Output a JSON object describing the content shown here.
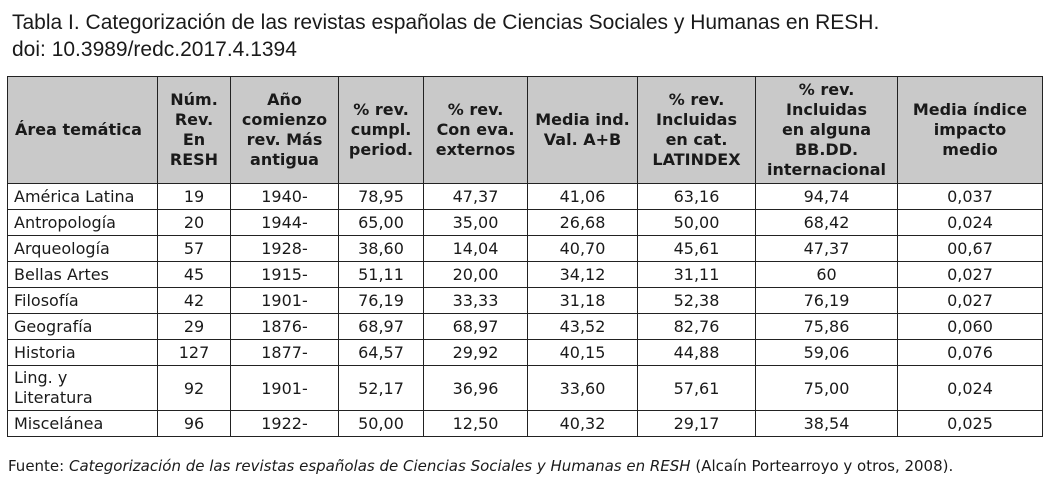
{
  "title": {
    "line1": "Tabla I. Categorización de las revistas españolas de Ciencias Sociales y Humanas en RESH.",
    "line2": "doi: 10.3989/redc.2017.4.1394"
  },
  "table": {
    "headers": [
      [
        "Área temática"
      ],
      [
        "Núm.",
        "Rev.",
        "En",
        "RESH"
      ],
      [
        "Año",
        "comienzo",
        "rev. Más",
        "antigua"
      ],
      [
        "% rev.",
        "cumpl.",
        "period."
      ],
      [
        "% rev.",
        "Con eva.",
        "externos"
      ],
      [
        "Media ind.",
        "Val. A+B"
      ],
      [
        "% rev.",
        "Incluidas",
        "en cat.",
        "LATINDEX"
      ],
      [
        "% rev.",
        "Incluidas",
        "en alguna",
        "BB.DD.",
        "internacional"
      ],
      [
        "Media índice",
        "impacto",
        "medio"
      ]
    ],
    "rows": [
      [
        "América Latina",
        "19",
        "1940-",
        "78,95",
        "47,37",
        "41,06",
        "63,16",
        "94,74",
        "0,037"
      ],
      [
        "Antropología",
        "20",
        "1944-",
        "65,00",
        "35,00",
        "26,68",
        "50,00",
        "68,42",
        "0,024"
      ],
      [
        "Arqueología",
        "57",
        "1928-",
        "38,60",
        "14,04",
        "40,70",
        "45,61",
        "47,37",
        "00,67"
      ],
      [
        "Bellas Artes",
        "45",
        "1915-",
        "51,11",
        "20,00",
        "34,12",
        "31,11",
        "60",
        "0,027"
      ],
      [
        "Filosofía",
        "42",
        "1901-",
        "76,19",
        "33,33",
        "31,18",
        "52,38",
        "76,19",
        "0,027"
      ],
      [
        "Geografía",
        "29",
        "1876-",
        "68,97",
        "68,97",
        "43,52",
        "82,76",
        "75,86",
        "0,060"
      ],
      [
        "Historia",
        "127",
        "1877-",
        "64,57",
        "29,92",
        "40,15",
        "44,88",
        "59,06",
        "0,076"
      ],
      [
        "Ling. y\nLiteratura",
        "92",
        "1901-",
        "52,17",
        "36,96",
        "33,60",
        "57,61",
        "75,00",
        "0,024"
      ],
      [
        "Miscelánea",
        "96",
        "1922-",
        "50,00",
        "12,50",
        "40,32",
        "29,17",
        "38,54",
        "0,025"
      ]
    ]
  },
  "source": {
    "prefix": "Fuente: ",
    "italic": "Categorización de las revistas españolas de Ciencias Sociales y Humanas en RESH",
    "suffix": " (Alcaín Portearroyo y otros, 2008)."
  }
}
